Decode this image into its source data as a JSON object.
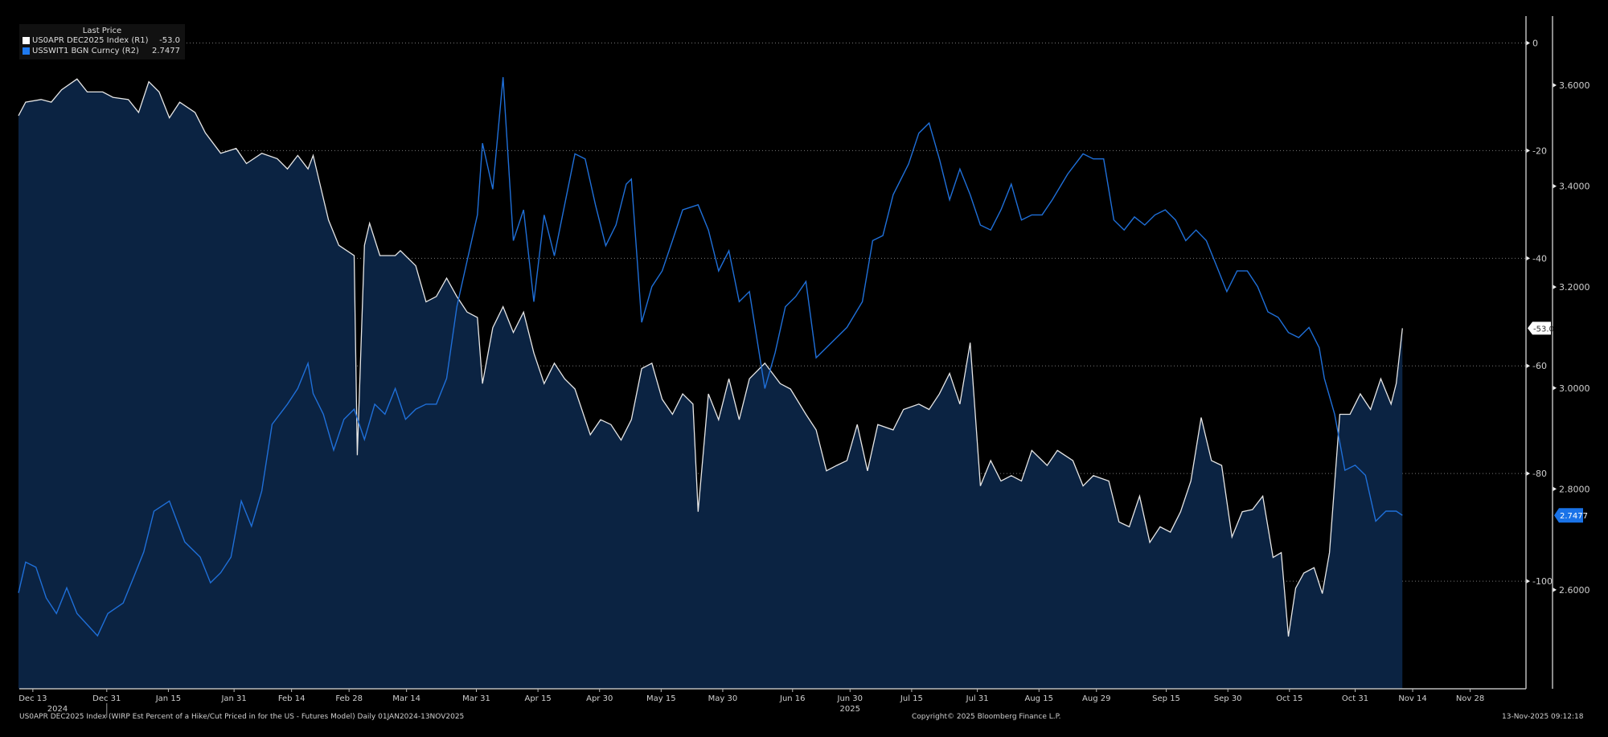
{
  "chart_data": {
    "type": "line",
    "title": "",
    "x_unit": "days since 2024-12-13",
    "xlim": [
      -3.3,
      363.6
    ],
    "x_ticks": [
      {
        "day": 0,
        "label": "Dec 13"
      },
      {
        "day": 18,
        "label": "Dec 31"
      },
      {
        "day": 33,
        "label": "Jan 15"
      },
      {
        "day": 49,
        "label": "Jan 31"
      },
      {
        "day": 63,
        "label": "Feb 14"
      },
      {
        "day": 77,
        "label": "Feb 28"
      },
      {
        "day": 91,
        "label": "Mar 14"
      },
      {
        "day": 108,
        "label": "Mar 31"
      },
      {
        "day": 123,
        "label": "Apr 15"
      },
      {
        "day": 138,
        "label": "Apr 30"
      },
      {
        "day": 153,
        "label": "May 15"
      },
      {
        "day": 168,
        "label": "May 30"
      },
      {
        "day": 185,
        "label": "Jun 16"
      },
      {
        "day": 199,
        "label": "Jun 30"
      },
      {
        "day": 214,
        "label": "Jul 15"
      },
      {
        "day": 230,
        "label": "Jul 31"
      },
      {
        "day": 245,
        "label": "Aug 15"
      },
      {
        "day": 259,
        "label": "Aug 29"
      },
      {
        "day": 276,
        "label": "Sep 15"
      },
      {
        "day": 291,
        "label": "Sep 30"
      },
      {
        "day": 306,
        "label": "Oct 15"
      },
      {
        "day": 322,
        "label": "Oct 31"
      },
      {
        "day": 336,
        "label": "Nov 14"
      },
      {
        "day": 350,
        "label": "Nov 28"
      }
    ],
    "year_labels": [
      {
        "day": 6,
        "label": "2024"
      },
      {
        "day": 199,
        "label": "2025"
      }
    ],
    "axes": {
      "R1": {
        "ylim": [
          -120,
          5
        ],
        "ticks": [
          0,
          -20,
          -40,
          -60,
          -80,
          -100
        ],
        "tick_labels": [
          "0",
          "-20",
          "-40",
          "-60",
          "-80",
          "-100"
        ],
        "grid": true
      },
      "R2": {
        "ylim": [
          2.404,
          3.737
        ],
        "ticks": [
          3.6,
          3.4,
          3.2,
          3.0,
          2.8,
          2.6
        ],
        "tick_labels": [
          "3.6000",
          "3.4000",
          "3.2000",
          "3.0000",
          "2.8000",
          "2.6000"
        ]
      }
    },
    "legend": {
      "title": "Last Price",
      "placement": "top-left"
    },
    "series": [
      {
        "name": "US0APR DEC2025 Index  (R1)",
        "last": "-53.0",
        "axis": "R1",
        "color": "#e6e6e6",
        "fill": "#0b2342",
        "style": "area",
        "points": [
          [
            -3.5,
            -13.5
          ],
          [
            -1.75,
            -11.0
          ],
          [
            2,
            -10.5
          ],
          [
            4.5,
            -11.0
          ],
          [
            7,
            -8.7
          ],
          [
            10.75,
            -6.7
          ],
          [
            13.25,
            -9.1
          ],
          [
            17,
            -9.1
          ],
          [
            19.5,
            -10.1
          ],
          [
            23.25,
            -10.5
          ],
          [
            25.75,
            -12.9
          ],
          [
            28.25,
            -7.2
          ],
          [
            30.75,
            -9.1
          ],
          [
            33.25,
            -13.9
          ],
          [
            35.75,
            -11.0
          ],
          [
            39.5,
            -12.9
          ],
          [
            42,
            -16.7
          ],
          [
            45.75,
            -20.5
          ],
          [
            49.5,
            -19.6
          ],
          [
            52,
            -22.4
          ],
          [
            55.75,
            -20.5
          ],
          [
            59.5,
            -21.5
          ],
          [
            62,
            -23.4
          ],
          [
            64.5,
            -20.9
          ],
          [
            67,
            -23.4
          ],
          [
            68.25,
            -20.9
          ],
          [
            72,
            -32.9
          ],
          [
            74.5,
            -37.6
          ],
          [
            78.25,
            -39.5
          ],
          [
            79,
            -76.6
          ],
          [
            80.75,
            -37.6
          ],
          [
            82,
            -33.5
          ],
          [
            84.5,
            -39.5
          ],
          [
            88.25,
            -39.5
          ],
          [
            89.5,
            -38.6
          ],
          [
            93.25,
            -41.4
          ],
          [
            95.75,
            -48.1
          ],
          [
            98.25,
            -47.1
          ],
          [
            100.75,
            -43.7
          ],
          [
            103.25,
            -47.1
          ],
          [
            105.75,
            -50.0
          ],
          [
            108.25,
            -51.0
          ],
          [
            109.5,
            -63.3
          ],
          [
            112,
            -52.9
          ],
          [
            114.5,
            -49.0
          ],
          [
            117,
            -53.8
          ],
          [
            119.5,
            -50.0
          ],
          [
            122,
            -57.6
          ],
          [
            124.5,
            -63.3
          ],
          [
            127,
            -59.5
          ],
          [
            129.5,
            -62.4
          ],
          [
            132,
            -64.3
          ],
          [
            135.75,
            -72.8
          ],
          [
            138.25,
            -70.0
          ],
          [
            140.75,
            -70.9
          ],
          [
            143.25,
            -73.8
          ],
          [
            145.75,
            -70.0
          ],
          [
            148.25,
            -60.5
          ],
          [
            150.75,
            -59.5
          ],
          [
            153.25,
            -66.2
          ],
          [
            155.75,
            -69.0
          ],
          [
            158.25,
            -65.2
          ],
          [
            160.75,
            -67.1
          ],
          [
            162,
            -87.1
          ],
          [
            164.5,
            -65.2
          ],
          [
            167,
            -70.0
          ],
          [
            169.5,
            -62.4
          ],
          [
            172,
            -70.0
          ],
          [
            174.5,
            -62.4
          ],
          [
            178.25,
            -59.5
          ],
          [
            182,
            -63.3
          ],
          [
            184.5,
            -64.3
          ],
          [
            188.25,
            -69.0
          ],
          [
            190.75,
            -71.9
          ],
          [
            193.25,
            -79.5
          ],
          [
            195.75,
            -78.5
          ],
          [
            198.25,
            -77.6
          ],
          [
            200.75,
            -70.9
          ],
          [
            203.25,
            -79.5
          ],
          [
            205.75,
            -70.9
          ],
          [
            209.5,
            -71.9
          ],
          [
            212,
            -68.1
          ],
          [
            215.75,
            -67.1
          ],
          [
            218.25,
            -68.1
          ],
          [
            220.75,
            -65.2
          ],
          [
            223.25,
            -61.4
          ],
          [
            225.75,
            -67.1
          ],
          [
            228.25,
            -55.7
          ],
          [
            230.75,
            -82.3
          ],
          [
            233.25,
            -77.6
          ],
          [
            235.75,
            -81.4
          ],
          [
            238.25,
            -80.4
          ],
          [
            240.75,
            -81.4
          ],
          [
            243.25,
            -75.7
          ],
          [
            247,
            -78.5
          ],
          [
            249.5,
            -75.7
          ],
          [
            253.25,
            -77.6
          ],
          [
            255.75,
            -82.3
          ],
          [
            258.25,
            -80.4
          ],
          [
            262,
            -81.4
          ],
          [
            264.5,
            -89.0
          ],
          [
            267,
            -89.9
          ],
          [
            269.5,
            -84.2
          ],
          [
            272,
            -92.8
          ],
          [
            274.5,
            -89.9
          ],
          [
            277,
            -90.9
          ],
          [
            279.5,
            -87.1
          ],
          [
            282,
            -81.4
          ],
          [
            284.5,
            -69.6
          ],
          [
            287,
            -77.6
          ],
          [
            289.5,
            -78.5
          ],
          [
            292,
            -91.8
          ],
          [
            294.5,
            -87.1
          ],
          [
            297,
            -86.7
          ],
          [
            299.5,
            -84.2
          ],
          [
            302,
            -95.6
          ],
          [
            304,
            -94.7
          ],
          [
            305.75,
            -110.3
          ],
          [
            307.5,
            -101.3
          ],
          [
            309.5,
            -98.5
          ],
          [
            312,
            -97.5
          ],
          [
            314,
            -102.3
          ],
          [
            315.75,
            -94.7
          ],
          [
            318.25,
            -69.0
          ],
          [
            320.75,
            -69.0
          ],
          [
            323.25,
            -65.2
          ],
          [
            325.75,
            -68.1
          ],
          [
            328.25,
            -62.4
          ],
          [
            330.75,
            -67.1
          ],
          [
            332,
            -63.3
          ],
          [
            333.5,
            -53.0
          ]
        ]
      },
      {
        "name": "USSWIT1 BGN Curncy  (R2)",
        "last": "2.7477",
        "axis": "R2",
        "color": "#1f6fd8",
        "style": "line",
        "points": [
          [
            -3.5,
            2.594
          ],
          [
            -1.75,
            2.655
          ],
          [
            0.75,
            2.645
          ],
          [
            3.25,
            2.584
          ],
          [
            5.75,
            2.553
          ],
          [
            8.25,
            2.604
          ],
          [
            10.75,
            2.553
          ],
          [
            15.75,
            2.509
          ],
          [
            18.25,
            2.553
          ],
          [
            22,
            2.574
          ],
          [
            24.5,
            2.624
          ],
          [
            27,
            2.675
          ],
          [
            29.5,
            2.756
          ],
          [
            33.25,
            2.776
          ],
          [
            37,
            2.695
          ],
          [
            40.75,
            2.665
          ],
          [
            43.25,
            2.614
          ],
          [
            45.75,
            2.634
          ],
          [
            48.25,
            2.665
          ],
          [
            50.75,
            2.776
          ],
          [
            53.25,
            2.726
          ],
          [
            55.75,
            2.796
          ],
          [
            58.25,
            2.928
          ],
          [
            62,
            2.968
          ],
          [
            64.5,
            2.999
          ],
          [
            67,
            3.049
          ],
          [
            68.25,
            2.989
          ],
          [
            70.75,
            2.948
          ],
          [
            73.25,
            2.877
          ],
          [
            75.75,
            2.938
          ],
          [
            78.25,
            2.958
          ],
          [
            80.75,
            2.898
          ],
          [
            83.25,
            2.968
          ],
          [
            85.75,
            2.948
          ],
          [
            88.25,
            2.999
          ],
          [
            90.75,
            2.938
          ],
          [
            93.25,
            2.958
          ],
          [
            95.75,
            2.968
          ],
          [
            98.25,
            2.968
          ],
          [
            100.75,
            3.019
          ],
          [
            103.25,
            3.161
          ],
          [
            105.75,
            3.252
          ],
          [
            108.25,
            3.343
          ],
          [
            109.5,
            3.485
          ],
          [
            112,
            3.394
          ],
          [
            114.5,
            3.616
          ],
          [
            117,
            3.292
          ],
          [
            119.5,
            3.353
          ],
          [
            122,
            3.171
          ],
          [
            124.5,
            3.343
          ],
          [
            127,
            3.262
          ],
          [
            129.5,
            3.363
          ],
          [
            132,
            3.464
          ],
          [
            134.5,
            3.454
          ],
          [
            137,
            3.363
          ],
          [
            139.5,
            3.282
          ],
          [
            142,
            3.323
          ],
          [
            144.5,
            3.404
          ],
          [
            145.75,
            3.414
          ],
          [
            148.25,
            3.13
          ],
          [
            150.75,
            3.201
          ],
          [
            153.25,
            3.232
          ],
          [
            155.75,
            3.292
          ],
          [
            158.25,
            3.353
          ],
          [
            162,
            3.363
          ],
          [
            164.5,
            3.313
          ],
          [
            167,
            3.232
          ],
          [
            169.5,
            3.272
          ],
          [
            172,
            3.171
          ],
          [
            174.5,
            3.191
          ],
          [
            178.25,
            2.999
          ],
          [
            180.75,
            3.07
          ],
          [
            183.25,
            3.161
          ],
          [
            185.75,
            3.181
          ],
          [
            188.25,
            3.211
          ],
          [
            190.75,
            3.06
          ],
          [
            194.5,
            3.09
          ],
          [
            198.25,
            3.12
          ],
          [
            202,
            3.171
          ],
          [
            204.5,
            3.292
          ],
          [
            207,
            3.302
          ],
          [
            209.5,
            3.383
          ],
          [
            213.25,
            3.444
          ],
          [
            215.75,
            3.505
          ],
          [
            218.25,
            3.525
          ],
          [
            220.75,
            3.454
          ],
          [
            223.25,
            3.373
          ],
          [
            225.75,
            3.434
          ],
          [
            228.25,
            3.383
          ],
          [
            230.75,
            3.323
          ],
          [
            233.25,
            3.313
          ],
          [
            235.75,
            3.353
          ],
          [
            238.25,
            3.404
          ],
          [
            240.75,
            3.333
          ],
          [
            243.25,
            3.343
          ],
          [
            245.75,
            3.343
          ],
          [
            248.25,
            3.373
          ],
          [
            252,
            3.424
          ],
          [
            255.75,
            3.464
          ],
          [
            258.25,
            3.454
          ],
          [
            260.75,
            3.454
          ],
          [
            263.25,
            3.333
          ],
          [
            265.75,
            3.313
          ],
          [
            268.25,
            3.339
          ],
          [
            270.75,
            3.323
          ],
          [
            273.25,
            3.343
          ],
          [
            275.75,
            3.353
          ],
          [
            278.25,
            3.333
          ],
          [
            280.75,
            3.292
          ],
          [
            283.25,
            3.313
          ],
          [
            285.75,
            3.292
          ],
          [
            288.25,
            3.242
          ],
          [
            290.75,
            3.191
          ],
          [
            293.25,
            3.232
          ],
          [
            295.75,
            3.232
          ],
          [
            298.25,
            3.201
          ],
          [
            300.75,
            3.151
          ],
          [
            303.25,
            3.14
          ],
          [
            305.75,
            3.11
          ],
          [
            308.25,
            3.1
          ],
          [
            310.75,
            3.12
          ],
          [
            313.25,
            3.08
          ],
          [
            314.5,
            3.019
          ],
          [
            317,
            2.948
          ],
          [
            319.5,
            2.837
          ],
          [
            322,
            2.847
          ],
          [
            324.5,
            2.827
          ],
          [
            327,
            2.736
          ],
          [
            329.5,
            2.756
          ],
          [
            332,
            2.756
          ],
          [
            333.5,
            2.7477
          ]
        ]
      }
    ]
  },
  "footer": {
    "description": "US0APR DEC2025 Index (WIRP Est Percent of a Hike/Cut Priced in for the US - Futures Model) Daily 01JAN2024-13NOV2025",
    "copyright": "Copyright© 2025 Bloomberg Finance L.P.",
    "timestamp": "13-Nov-2025 09:12:18"
  }
}
